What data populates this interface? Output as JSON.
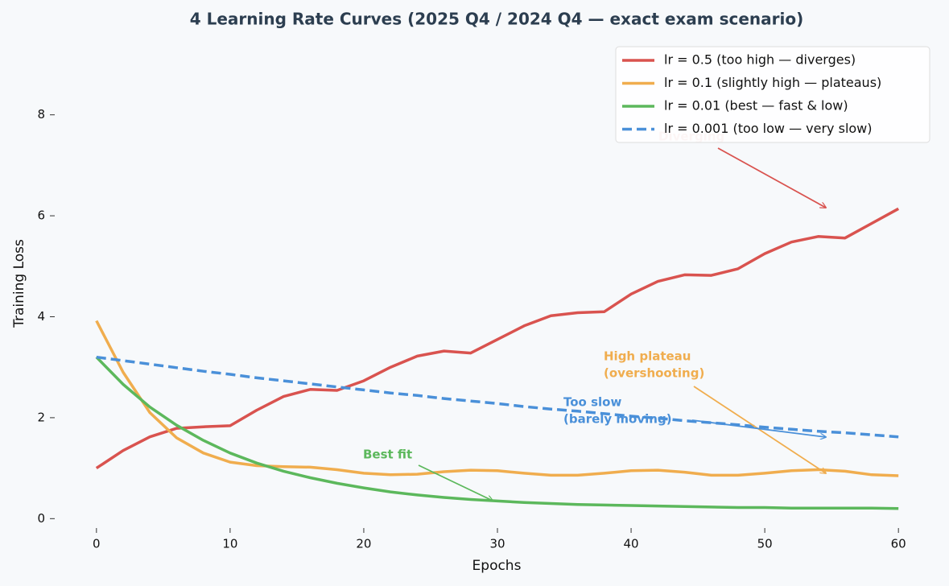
{
  "chart_data": {
    "type": "line",
    "title": "4 Learning Rate Curves  (2025 Q4 / 2024 Q4 — exact exam scenario)",
    "xlabel": "Epochs",
    "ylabel": "Training Loss",
    "x": [
      0,
      2,
      4,
      6,
      8,
      10,
      12,
      14,
      16,
      18,
      20,
      22,
      24,
      26,
      28,
      30,
      32,
      34,
      36,
      38,
      40,
      42,
      44,
      46,
      48,
      50,
      52,
      54,
      56,
      58,
      60
    ],
    "series": [
      {
        "name": "lr = 0.5  (too high — diverges)",
        "color": "#d9534f",
        "dashed": false,
        "values": [
          1.0,
          1.35,
          1.62,
          1.79,
          1.82,
          1.84,
          2.15,
          2.42,
          2.56,
          2.54,
          2.73,
          3.0,
          3.22,
          3.32,
          3.28,
          3.55,
          3.82,
          4.02,
          4.08,
          4.1,
          4.45,
          4.7,
          4.83,
          4.82,
          4.95,
          5.25,
          5.48,
          5.59,
          5.56,
          5.85,
          6.14
        ]
      },
      {
        "name": "lr = 0.1  (slightly high — plateaus)",
        "color": "#f0ad4e",
        "dashed": false,
        "values": [
          3.92,
          2.9,
          2.1,
          1.6,
          1.3,
          1.12,
          1.05,
          1.03,
          1.02,
          0.97,
          0.9,
          0.87,
          0.88,
          0.93,
          0.96,
          0.95,
          0.9,
          0.86,
          0.86,
          0.9,
          0.95,
          0.96,
          0.92,
          0.86,
          0.86,
          0.9,
          0.95,
          0.97,
          0.94,
          0.87,
          0.85
        ]
      },
      {
        "name": "lr = 0.01  (best — fast & low)",
        "color": "#5cb85c",
        "dashed": false,
        "values": [
          3.2,
          2.66,
          2.21,
          1.85,
          1.55,
          1.3,
          1.1,
          0.94,
          0.81,
          0.7,
          0.61,
          0.53,
          0.47,
          0.42,
          0.38,
          0.35,
          0.32,
          0.3,
          0.28,
          0.27,
          0.26,
          0.25,
          0.24,
          0.23,
          0.22,
          0.22,
          0.21,
          0.21,
          0.21,
          0.21,
          0.2
        ]
      },
      {
        "name": "lr = 0.001  (too low — very slow)",
        "color": "#4a90d9",
        "dashed": true,
        "values": [
          3.2,
          3.13,
          3.06,
          2.99,
          2.92,
          2.86,
          2.79,
          2.73,
          2.67,
          2.61,
          2.55,
          2.49,
          2.44,
          2.38,
          2.33,
          2.28,
          2.22,
          2.17,
          2.13,
          2.08,
          2.03,
          1.99,
          1.94,
          1.9,
          1.86,
          1.81,
          1.77,
          1.73,
          1.7,
          1.66,
          1.62
        ]
      }
    ],
    "annotations": [
      {
        "text": [
          "Diverging"
        ],
        "color": "#d9534f"
      },
      {
        "text": [
          "High plateau",
          "(overshooting)"
        ],
        "color": "#f0ad4e"
      },
      {
        "text": [
          "Too slow",
          "(barely moving)"
        ],
        "color": "#4a90d9"
      },
      {
        "text": [
          "Best fit"
        ],
        "color": "#5cb85c"
      }
    ],
    "xlim": [
      -3,
      63
    ],
    "ylim": [
      -0.25,
      9.35
    ],
    "xticks": [
      0,
      10,
      20,
      30,
      40,
      50,
      60
    ],
    "yticks": [
      0,
      2,
      4,
      6,
      8
    ],
    "legend": "upper right"
  }
}
